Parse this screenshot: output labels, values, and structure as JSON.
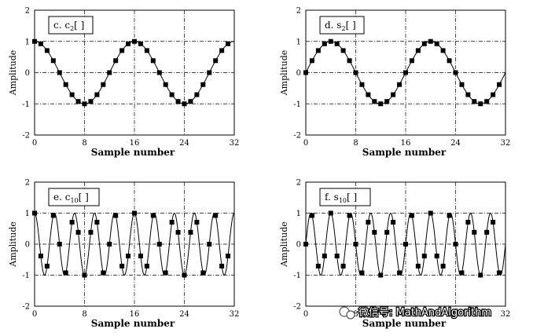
{
  "chart_data": [
    {
      "type": "scatter",
      "panel_label": "c.  c",
      "panel_sub": "2",
      "panel_tail": "[ ]",
      "xlabel": "Sample number",
      "ylabel": "Amplitude",
      "xlim": [
        0,
        32
      ],
      "ylim": [
        -2,
        2
      ],
      "xticks": [
        "0",
        "8",
        "16",
        "24",
        "32"
      ],
      "yticks": [
        "2",
        "1",
        "0",
        "-1",
        "-2"
      ],
      "curve": "cos",
      "k": 2,
      "x": [
        0,
        1,
        2,
        3,
        4,
        5,
        6,
        7,
        8,
        9,
        10,
        11,
        12,
        13,
        14,
        15,
        16,
        17,
        18,
        19,
        20,
        21,
        22,
        23,
        24,
        25,
        26,
        27,
        28,
        29,
        30,
        31
      ],
      "y": [
        1.0,
        0.924,
        0.707,
        0.383,
        0.0,
        -0.383,
        -0.707,
        -0.924,
        -1.0,
        -0.924,
        -0.707,
        -0.383,
        0.0,
        0.383,
        0.707,
        0.924,
        1.0,
        0.924,
        0.707,
        0.383,
        0.0,
        -0.383,
        -0.707,
        -0.924,
        -1.0,
        -0.924,
        -0.707,
        -0.383,
        0.0,
        0.383,
        0.707,
        0.924
      ]
    },
    {
      "type": "scatter",
      "panel_label": "d.  s",
      "panel_sub": "2",
      "panel_tail": "[ ]",
      "xlabel": "Sample number",
      "ylabel": "Amplitude",
      "xlim": [
        0,
        32
      ],
      "ylim": [
        -2,
        2
      ],
      "xticks": [
        "0",
        "8",
        "16",
        "24",
        "32"
      ],
      "yticks": [
        "2",
        "1",
        "0",
        "-1",
        "-2"
      ],
      "curve": "sin",
      "k": 2,
      "x": [
        0,
        1,
        2,
        3,
        4,
        5,
        6,
        7,
        8,
        9,
        10,
        11,
        12,
        13,
        14,
        15,
        16,
        17,
        18,
        19,
        20,
        21,
        22,
        23,
        24,
        25,
        26,
        27,
        28,
        29,
        30,
        31
      ],
      "y": [
        0.0,
        0.383,
        0.707,
        0.924,
        1.0,
        0.924,
        0.707,
        0.383,
        0.0,
        -0.383,
        -0.707,
        -0.924,
        -1.0,
        -0.924,
        -0.707,
        -0.383,
        0.0,
        0.383,
        0.707,
        0.924,
        1.0,
        0.924,
        0.707,
        0.383,
        0.0,
        -0.383,
        -0.707,
        -0.924,
        -1.0,
        -0.924,
        -0.707,
        -0.383
      ]
    },
    {
      "type": "scatter",
      "panel_label": "e.  c",
      "panel_sub": "10",
      "panel_tail": "[ ]",
      "xlabel": "Sample number",
      "ylabel": "Amplitude",
      "xlim": [
        0,
        32
      ],
      "ylim": [
        -2,
        2
      ],
      "xticks": [
        "0",
        "8",
        "16",
        "24",
        "32"
      ],
      "yticks": [
        "2",
        "1",
        "0",
        "-1",
        "-2"
      ],
      "curve": "cos",
      "k": 10,
      "x": [
        0,
        1,
        2,
        3,
        4,
        5,
        6,
        7,
        8,
        9,
        10,
        11,
        12,
        13,
        14,
        15,
        16,
        17,
        18,
        19,
        20,
        21,
        22,
        23,
        24,
        25,
        26,
        27,
        28,
        29,
        30,
        31
      ],
      "y": [
        1.0,
        -0.383,
        -0.707,
        0.924,
        0.0,
        -0.924,
        0.707,
        0.383,
        -1.0,
        0.383,
        0.707,
        -0.924,
        0.0,
        0.924,
        -0.707,
        -0.383,
        1.0,
        -0.383,
        -0.707,
        0.924,
        0.0,
        -0.924,
        0.707,
        0.383,
        -1.0,
        0.383,
        0.707,
        -0.924,
        0.0,
        0.924,
        -0.707,
        -0.383
      ]
    },
    {
      "type": "scatter",
      "panel_label": "f.  s",
      "panel_sub": "10",
      "panel_tail": "[ ]",
      "xlabel": "Sample number",
      "ylabel": "Amplitude",
      "xlim": [
        0,
        32
      ],
      "ylim": [
        -2,
        2
      ],
      "xticks": [
        "0",
        "8",
        "16",
        "24",
        "32"
      ],
      "yticks": [
        "2",
        "1",
        "0",
        "-1",
        "-2"
      ],
      "curve": "sin",
      "k": 10,
      "x": [
        0,
        1,
        2,
        3,
        4,
        5,
        6,
        7,
        8,
        9,
        10,
        11,
        12,
        13,
        14,
        15,
        16,
        17,
        18,
        19,
        20,
        21,
        22,
        23,
        24,
        25,
        26,
        27,
        28,
        29,
        30,
        31
      ],
      "y": [
        0.0,
        0.924,
        -0.707,
        -0.383,
        1.0,
        -0.383,
        -0.707,
        0.924,
        0.0,
        -0.924,
        0.707,
        0.383,
        -1.0,
        0.383,
        0.707,
        -0.924,
        0.0,
        0.924,
        -0.707,
        -0.383,
        1.0,
        -0.383,
        -0.707,
        0.924,
        0.0,
        -0.924,
        0.707,
        0.383,
        -1.0,
        0.383,
        0.707,
        -0.924
      ]
    }
  ],
  "watermark": {
    "icon": "wechat-icon",
    "text": "微信号: MathAndAlgorithm"
  }
}
